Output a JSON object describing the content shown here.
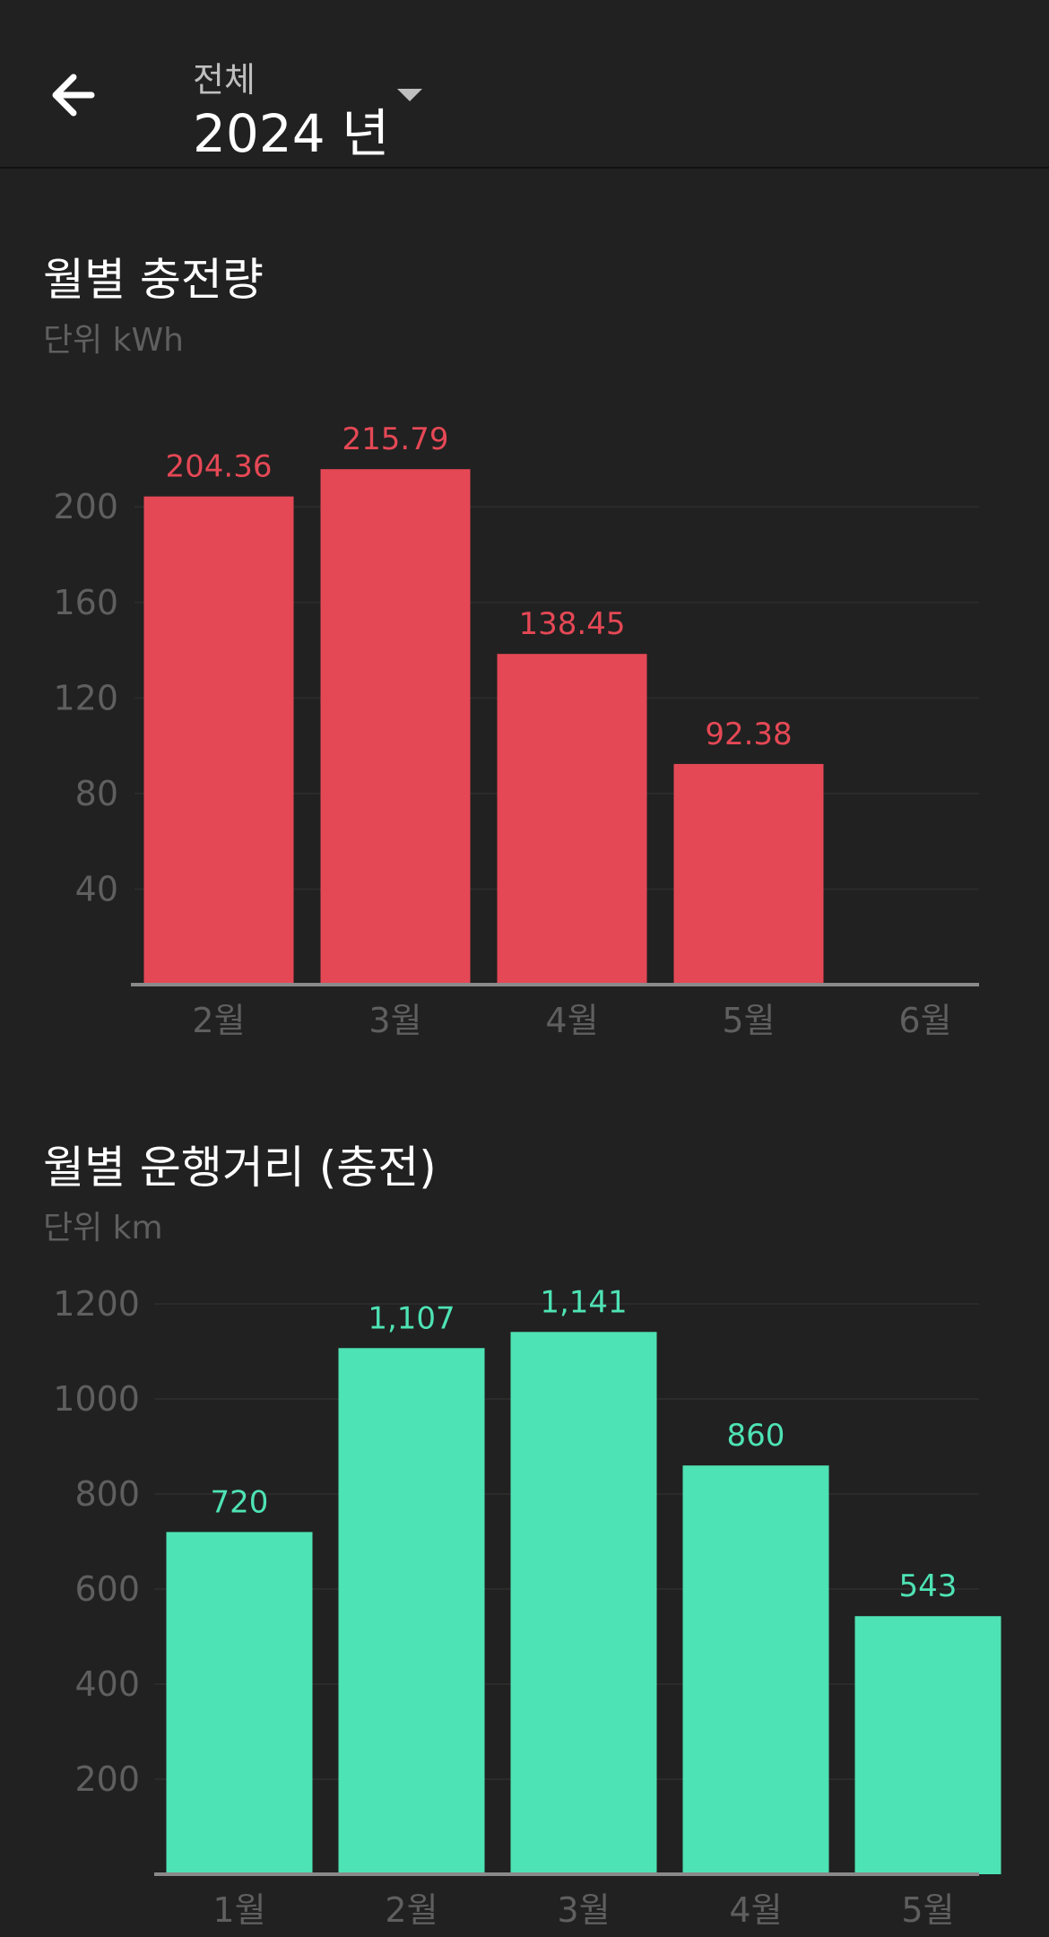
{
  "header": {
    "back_icon": "arrow-left-icon",
    "scope": "전체",
    "year": "2024 년",
    "dropdown_icon": "caret-down-icon"
  },
  "charging_chart": {
    "title": "월별 충전량",
    "unit_label": "단위 kWh",
    "bar_color": "#e54855"
  },
  "distance_chart": {
    "title": "월별 운행거리 (충전)",
    "unit_label": "단위 km",
    "bar_color": "#4ee3b4"
  },
  "chart_data": [
    {
      "type": "bar",
      "title": "월별 충전량",
      "ylabel": "단위 kWh",
      "categories": [
        "2월",
        "3월",
        "4월",
        "5월",
        "6월"
      ],
      "values": [
        204.36,
        215.79,
        138.45,
        92.38,
        null
      ],
      "value_labels": [
        "204.36",
        "215.79",
        "138.45",
        "92.38",
        ""
      ],
      "yticks": [
        40,
        80,
        120,
        160,
        200
      ],
      "ylim": [
        0,
        232
      ],
      "grid": true,
      "color": "#e54855"
    },
    {
      "type": "bar",
      "title": "월별 운행거리 (충전)",
      "ylabel": "단위 km",
      "categories": [
        "1월",
        "2월",
        "3월",
        "4월",
        "5월"
      ],
      "values": [
        720,
        1107,
        1141,
        860,
        543
      ],
      "value_labels": [
        "720",
        "1,107",
        "1,141",
        "860",
        "543"
      ],
      "yticks": [
        200,
        400,
        600,
        800,
        1000,
        1200
      ],
      "ylim": [
        0,
        1200
      ],
      "grid": true,
      "color": "#4ee3b4"
    }
  ]
}
